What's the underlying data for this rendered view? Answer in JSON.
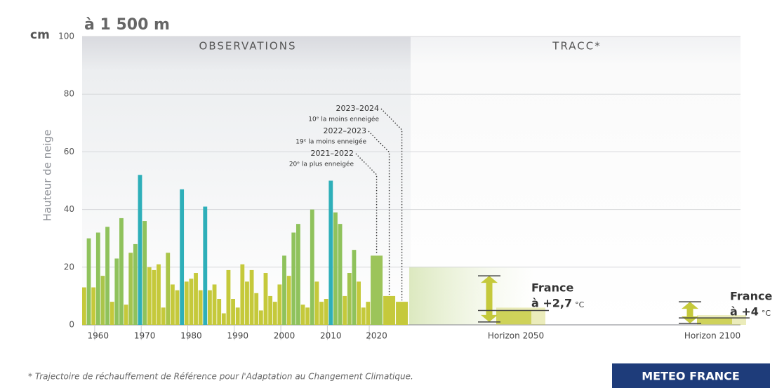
{
  "chart_data": {
    "type": "bar",
    "title": "à 1 500 m",
    "y_unit": "cm",
    "ylabel": "Hauteur de neige",
    "sections": [
      "OBSERVATIONS",
      "TRACC*"
    ],
    "categories": [
      null,
      null,
      null,
      "1960",
      null,
      null,
      null,
      null,
      null,
      null,
      null,
      null,
      null,
      "1970",
      null,
      null,
      null,
      null,
      null,
      null,
      null,
      null,
      null,
      "1980",
      null,
      null,
      null,
      null,
      null,
      null,
      null,
      null,
      null,
      "1990",
      null,
      null,
      null,
      null,
      null,
      null,
      null,
      null,
      null,
      "2000",
      null,
      null,
      null,
      null,
      null,
      null,
      null,
      null,
      null,
      "2010",
      null,
      null,
      null,
      null,
      null,
      null,
      null,
      null,
      "2020",
      null,
      null
    ],
    "values": [
      13,
      30,
      13,
      32,
      17,
      34,
      8,
      23,
      37,
      7,
      25,
      28,
      52,
      36,
      20,
      19,
      21,
      6,
      25,
      14,
      12,
      47,
      15,
      16,
      18,
      12,
      41,
      12,
      14,
      9,
      4,
      19,
      9,
      6,
      21,
      15,
      19,
      11,
      5,
      18,
      10,
      8,
      14,
      24,
      17,
      32,
      35,
      7,
      6,
      40,
      15,
      8,
      9,
      50,
      39,
      35,
      10,
      18,
      26,
      15,
      6,
      8,
      24,
      10,
      8
    ],
    "colors": [
      "#c5c93b",
      "#8fc25c",
      "#c5c93b",
      "#8fc25c",
      "#aac54a",
      "#8fc25c",
      "#c5c93b",
      "#8fc25c",
      "#8fc25c",
      "#c5c93b",
      "#a3c44f",
      "#8fc25c",
      "#2eafb9",
      "#8fc25c",
      "#c5c93b",
      "#c5c93b",
      "#c5c93b",
      "#c5c93b",
      "#aac54a",
      "#c5c93b",
      "#c5c93b",
      "#2eafb9",
      "#c5c93b",
      "#c5c93b",
      "#c5c93b",
      "#c5c93b",
      "#2eafb9",
      "#c5c93b",
      "#c5c93b",
      "#c5c93b",
      "#c5c93b",
      "#c5c93b",
      "#c5c93b",
      "#c5c93b",
      "#c5c93b",
      "#c5c93b",
      "#c5c93b",
      "#c5c93b",
      "#c5c93b",
      "#c5c93b",
      "#c5c93b",
      "#c5c93b",
      "#c5c93b",
      "#8fc25c",
      "#c5c93b",
      "#8fc25c",
      "#8fc25c",
      "#c5c93b",
      "#c5c93b",
      "#8fc25c",
      "#c5c93b",
      "#c5c93b",
      "#c5c93b",
      "#2eafb9",
      "#8fc25c",
      "#8fc25c",
      "#c5c93b",
      "#a3c44f",
      "#8fc25c",
      "#c5c93b",
      "#c5c93b",
      "#c5c93b",
      "#9cc45a",
      "#c5c93b",
      "#c5c93b"
    ],
    "ylim": [
      0,
      100
    ],
    "yticks": [
      0,
      20,
      40,
      60,
      80,
      100
    ],
    "grid": true,
    "annotations": [
      {
        "label": "2023–2024",
        "note": "10ᵉ la moins enneigée"
      },
      {
        "label": "2022–2023",
        "note": "19ᵉ la moins enneigée"
      },
      {
        "label": "2021–2022",
        "note": "20ᵉ la plus enneigée"
      }
    ],
    "horizons": [
      {
        "label": "Horizon 2050",
        "region": "France",
        "warming": "à +2,7",
        "unit": "°C",
        "low": 1,
        "median": 5,
        "high": 17,
        "color": "#c5c93b"
      },
      {
        "label": "Horizon 2100",
        "region": "France",
        "warming": "à +4",
        "unit": "°C",
        "low": 0.5,
        "median": 2.4,
        "high": 8,
        "color": "#c5c93b"
      }
    ],
    "footnote": "* Trajectoire de réchauffement de Référence pour l'Adaptation au Changement Climatique.",
    "brand": "METEO FRANCE"
  }
}
